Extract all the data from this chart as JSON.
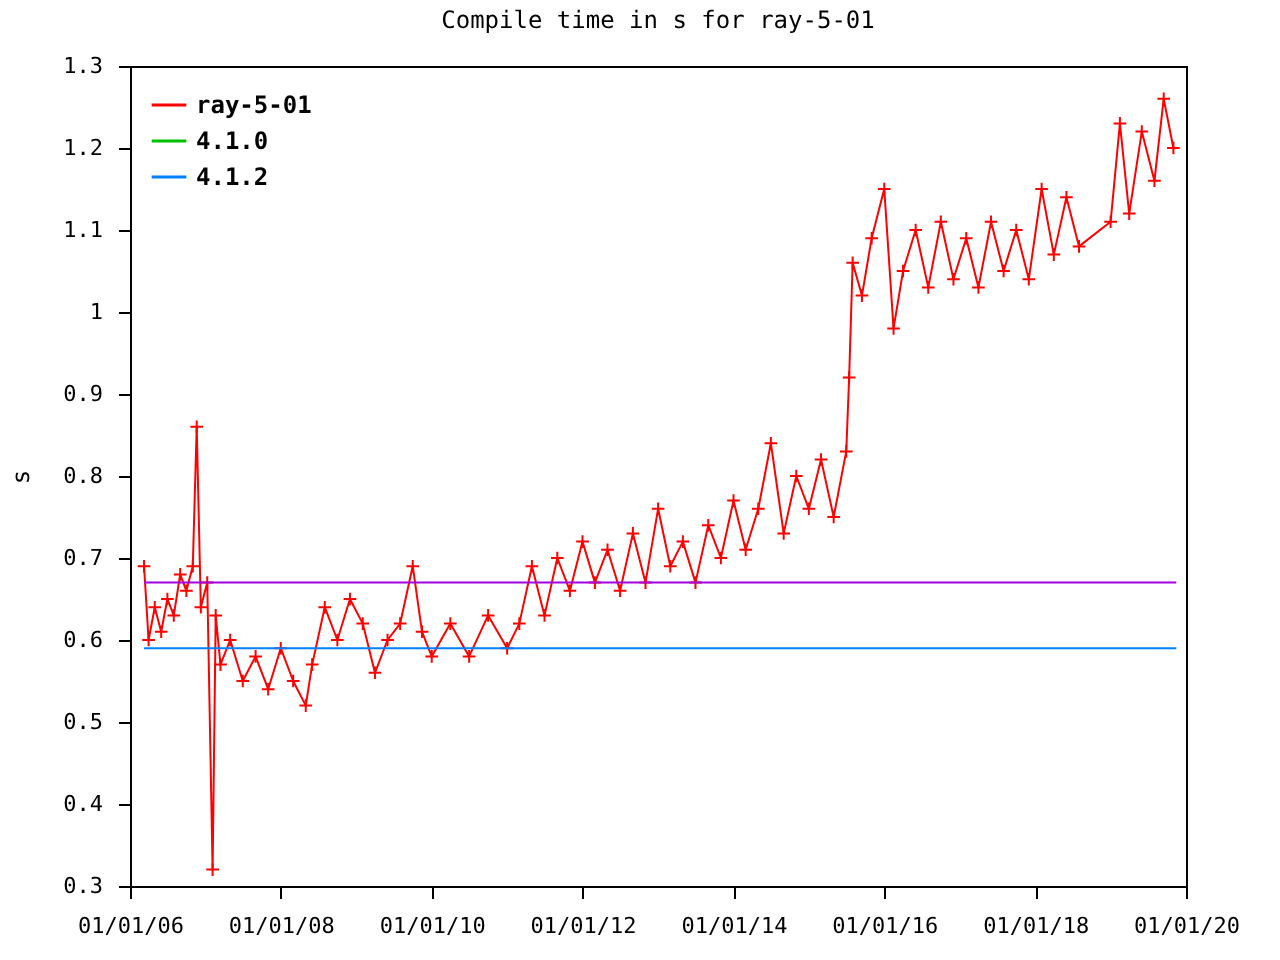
{
  "chart_data": {
    "type": "line",
    "title": "Compile time in s for ray-5-01",
    "ylabel": "s",
    "xlim": [
      "2006-01-01",
      "2020-01-01"
    ],
    "xticks": [
      {
        "value": "2006-01-01",
        "label": "01/01/06"
      },
      {
        "value": "2008-01-01",
        "label": "01/01/08"
      },
      {
        "value": "2010-01-01",
        "label": "01/01/10"
      },
      {
        "value": "2012-01-01",
        "label": "01/01/12"
      },
      {
        "value": "2014-01-01",
        "label": "01/01/14"
      },
      {
        "value": "2016-01-01",
        "label": "01/01/16"
      },
      {
        "value": "2018-01-01",
        "label": "01/01/18"
      },
      {
        "value": "2020-01-01",
        "label": "01/01/20"
      }
    ],
    "ylim": [
      0.3,
      1.3
    ],
    "yticks": [
      0.3,
      0.4,
      0.5,
      0.6,
      0.7,
      0.8,
      0.9,
      1,
      1.1,
      1.2,
      1.3
    ],
    "grid": false,
    "legend": "top left",
    "series": [
      {
        "name": "ray-5-01",
        "color": "#ff0000",
        "marker": "cross",
        "x": [
          "2006-03-10",
          "2006-04-01",
          "2006-05-01",
          "2006-06-01",
          "2006-07-01",
          "2006-08-01",
          "2006-09-01",
          "2006-10-01",
          "2006-11-01",
          "2006-11-20",
          "2006-12-10",
          "2007-01-10",
          "2007-02-05",
          "2007-02-20",
          "2007-03-15",
          "2007-05-01",
          "2007-07-01",
          "2007-09-01",
          "2007-11-01",
          "2008-01-01",
          "2008-03-01",
          "2008-05-01",
          "2008-06-01",
          "2008-08-01",
          "2008-10-01",
          "2008-12-01",
          "2009-02-01",
          "2009-04-01",
          "2009-06-01",
          "2009-08-01",
          "2009-10-01",
          "2009-11-15",
          "2010-01-01",
          "2010-04-01",
          "2010-07-01",
          "2010-10-01",
          "2011-01-01",
          "2011-03-01",
          "2011-05-01",
          "2011-07-01",
          "2011-09-01",
          "2011-11-01",
          "2012-01-01",
          "2012-03-01",
          "2012-05-01",
          "2012-07-01",
          "2012-09-01",
          "2012-11-01",
          "2013-01-01",
          "2013-03-01",
          "2013-05-01",
          "2013-07-01",
          "2013-09-01",
          "2013-11-01",
          "2014-01-01",
          "2014-03-01",
          "2014-05-01",
          "2014-07-01",
          "2014-09-01",
          "2014-11-01",
          "2015-01-01",
          "2015-03-01",
          "2015-05-01",
          "2015-07-01",
          "2015-07-15",
          "2015-08-01",
          "2015-09-15",
          "2015-11-01",
          "2016-01-01",
          "2016-02-15",
          "2016-04-01",
          "2016-06-01",
          "2016-08-01",
          "2016-10-01",
          "2016-12-01",
          "2017-02-01",
          "2017-04-01",
          "2017-06-01",
          "2017-08-01",
          "2017-10-01",
          "2017-12-01",
          "2018-02-01",
          "2018-04-01",
          "2018-06-01",
          "2018-08-01",
          "2019-01-01",
          "2019-02-15",
          "2019-04-01",
          "2019-06-01",
          "2019-08-01",
          "2019-09-15",
          "2019-11-01"
        ],
        "values": [
          0.69,
          0.6,
          0.64,
          0.61,
          0.65,
          0.63,
          0.68,
          0.66,
          0.69,
          0.86,
          0.64,
          0.67,
          0.32,
          0.63,
          0.57,
          0.6,
          0.55,
          0.58,
          0.54,
          0.59,
          0.55,
          0.52,
          0.57,
          0.64,
          0.6,
          0.65,
          0.62,
          0.56,
          0.6,
          0.62,
          0.69,
          0.61,
          0.58,
          0.62,
          0.58,
          0.63,
          0.59,
          0.62,
          0.69,
          0.63,
          0.7,
          0.66,
          0.72,
          0.67,
          0.71,
          0.66,
          0.73,
          0.67,
          0.76,
          0.69,
          0.72,
          0.67,
          0.74,
          0.7,
          0.77,
          0.71,
          0.76,
          0.84,
          0.73,
          0.8,
          0.76,
          0.82,
          0.75,
          0.83,
          0.92,
          1.06,
          1.02,
          1.09,
          1.15,
          0.98,
          1.05,
          1.1,
          1.03,
          1.11,
          1.04,
          1.09,
          1.03,
          1.11,
          1.05,
          1.1,
          1.04,
          1.15,
          1.07,
          1.14,
          1.08,
          1.11,
          1.23,
          1.12,
          1.22,
          1.16,
          1.26,
          1.2
        ]
      },
      {
        "name": "4.1.0",
        "color": "#00c000"
      },
      {
        "name": "4.1.2",
        "color": "#0080ff",
        "x": [
          "2006-03-10",
          "2019-11-15"
        ],
        "values": [
          0.59,
          0.59
        ]
      },
      {
        "color": "#a000e0",
        "x": [
          "2006-03-10",
          "2019-11-15"
        ],
        "values": [
          0.67,
          0.67
        ]
      }
    ]
  }
}
